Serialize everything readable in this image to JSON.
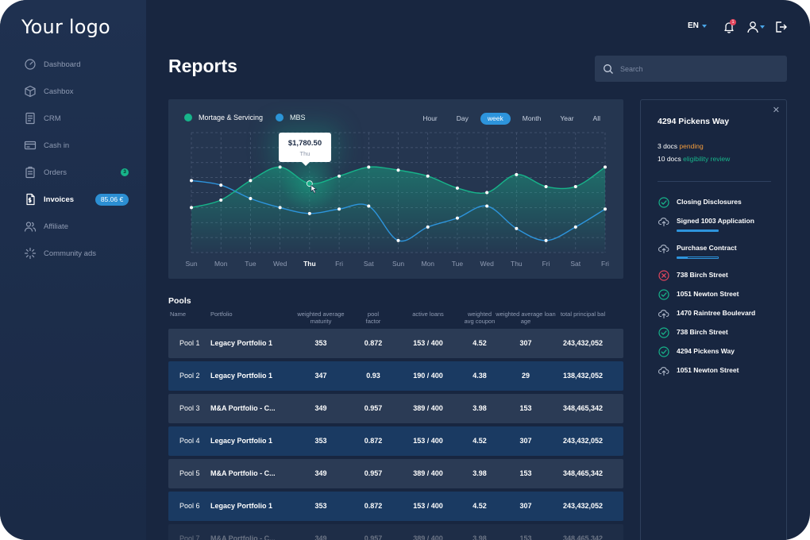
{
  "app": {
    "logo": "Your logo"
  },
  "sidebar": {
    "items": [
      {
        "key": "dashboard",
        "label": "Dashboard",
        "icon": "gauge-icon"
      },
      {
        "key": "cashbox",
        "label": "Cashbox",
        "icon": "box-icon"
      },
      {
        "key": "crm",
        "label": "CRM",
        "icon": "document-icon"
      },
      {
        "key": "cashin",
        "label": "Cash in",
        "icon": "card-icon"
      },
      {
        "key": "orders",
        "label": "Orders",
        "icon": "clipboard-icon",
        "badge": "3"
      },
      {
        "key": "invoices",
        "label": "Invoices",
        "icon": "invoice-icon",
        "amount": "85.06 €",
        "active": true
      },
      {
        "key": "affiliate",
        "label": "Affiliate",
        "icon": "users-icon"
      },
      {
        "key": "community",
        "label": "Community ads",
        "icon": "sparkle-icon"
      }
    ]
  },
  "topbar": {
    "language": "EN",
    "notifications_count": "1"
  },
  "page": {
    "title": "Reports"
  },
  "search": {
    "placeholder": "Search"
  },
  "chart_data": {
    "type": "area",
    "title": "",
    "legend": [
      {
        "name": "Mortage & Servicing",
        "color": "#17b48a"
      },
      {
        "name": "MBS",
        "color": "#2d94dc"
      }
    ],
    "ranges": [
      "Hour",
      "Day",
      "week",
      "Month",
      "Year",
      "All"
    ],
    "active_range": "week",
    "x": [
      "Sun",
      "Mon",
      "Tue",
      "Wed",
      "Thu",
      "Fri",
      "Sat",
      "Sun",
      "Mon",
      "Tue",
      "Wed",
      "Thu",
      "Fri",
      "Sat",
      "Fri"
    ],
    "ylim": [
      0,
      8
    ],
    "grid": true,
    "series": [
      {
        "name": "Mortage & Servicing",
        "values": [
          3.0,
          3.5,
          4.8,
          5.7,
          4.6,
          5.1,
          5.7,
          5.5,
          5.1,
          4.3,
          4.0,
          5.2,
          4.4,
          4.4,
          5.7
        ]
      },
      {
        "name": "MBS",
        "values": [
          4.8,
          4.5,
          3.6,
          3.0,
          2.6,
          2.9,
          3.1,
          0.8,
          1.7,
          2.3,
          3.1,
          1.6,
          0.8,
          1.7,
          2.9
        ]
      }
    ],
    "tooltip": {
      "value": "$1,780.50",
      "label": "Thu",
      "point_index": 4,
      "series": "Mortage & Servicing"
    }
  },
  "pools": {
    "title": "Pools",
    "columns": [
      "Name",
      "Portfolio",
      "weighted average maturity",
      "pool factor",
      "active loans",
      "weighted avg coupon",
      "weighted average loan age",
      "total principal bal"
    ],
    "rows": [
      {
        "name": "Pool 1",
        "portfolio": "Legacy Portfolio 1",
        "wam": "353",
        "factor": "0.872",
        "loans": "153 / 400",
        "coupon": "4.52",
        "age": "307",
        "principal": "243,432,052"
      },
      {
        "name": "Pool 2",
        "portfolio": "Legacy Portfolio 1",
        "wam": "347",
        "factor": "0.93",
        "loans": "190 / 400",
        "coupon": "4.38",
        "age": "29",
        "principal": "138,432,052"
      },
      {
        "name": "Pool 3",
        "portfolio": "M&A Portfolio - C...",
        "wam": "349",
        "factor": "0.957",
        "loans": "389 / 400",
        "coupon": "3.98",
        "age": "153",
        "principal": "348,465,342"
      },
      {
        "name": "Pool 4",
        "portfolio": "Legacy Portfolio 1",
        "wam": "353",
        "factor": "0.872",
        "loans": "153 / 400",
        "coupon": "4.52",
        "age": "307",
        "principal": "243,432,052"
      },
      {
        "name": "Pool 5",
        "portfolio": "M&A Portfolio - C...",
        "wam": "349",
        "factor": "0.957",
        "loans": "389 / 400",
        "coupon": "3.98",
        "age": "153",
        "principal": "348,465,342"
      },
      {
        "name": "Pool 6",
        "portfolio": "Legacy Portfolio 1",
        "wam": "353",
        "factor": "0.872",
        "loans": "153 / 400",
        "coupon": "4.52",
        "age": "307",
        "principal": "243,432,052"
      },
      {
        "name": "Pool 7",
        "portfolio": "M&A Portfolio - C...",
        "wam": "349",
        "factor": "0.957",
        "loans": "389 / 400",
        "coupon": "3.98",
        "age": "153",
        "principal": "348,465,342"
      }
    ]
  },
  "panel": {
    "title": "4294 Pickens Way",
    "docs_pending_count": "3 docs",
    "docs_pending_status": "pending",
    "docs_review_count": "10 docs",
    "docs_review_status": "eligibility review",
    "documents": [
      {
        "label": "Closing Disclosures",
        "status": "check-icon"
      },
      {
        "label": "Signed 1003 Application",
        "status": "upload-icon",
        "progress": 1.0
      },
      {
        "label": "Purchase Contract",
        "status": "upload-icon",
        "progress": 0.25
      },
      {
        "label": "738  Birch Street",
        "status": "error-icon"
      },
      {
        "label": "1051 Newton Street",
        "status": "check-icon"
      },
      {
        "label": "1470  Raintree Boulevard",
        "status": "upload-icon"
      },
      {
        "label": "738  Birch Street",
        "status": "check-icon"
      },
      {
        "label": "4294 Pickens Way",
        "status": "check-icon"
      },
      {
        "label": "1051 Newton Street",
        "status": "upload-icon"
      }
    ]
  },
  "colors": {
    "accent_green": "#17b48a",
    "accent_blue": "#2d94dc",
    "pending": "#f29b3c",
    "error": "#e2455c"
  }
}
